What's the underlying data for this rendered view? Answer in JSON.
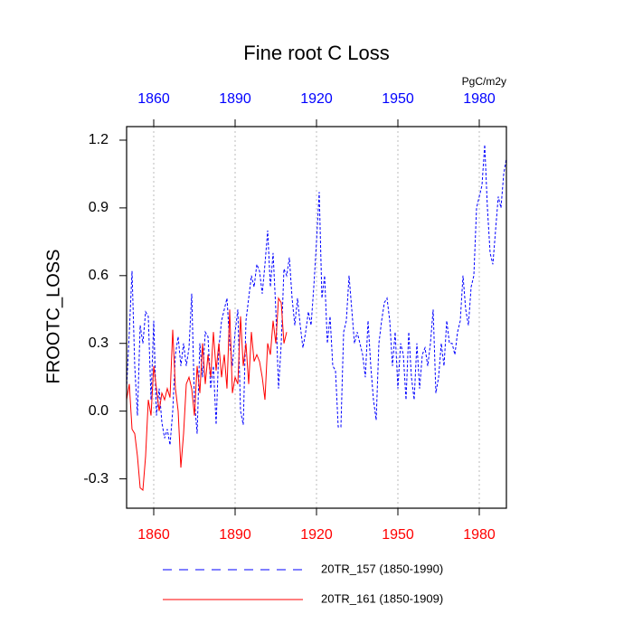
{
  "chart_data": {
    "type": "line",
    "title": "Fine root C Loss",
    "ylabel": "FROOTC_LOSS",
    "units": "PgC/m2y",
    "xlim": [
      1850,
      1990
    ],
    "xticks": [
      1860,
      1890,
      1920,
      1950,
      1980
    ],
    "ylim": [
      -0.43,
      1.26
    ],
    "yticks": [
      -0.3,
      {
        "value": 0,
        "label": "0.0"
      },
      0.3,
      0.6,
      0.9,
      1.2
    ],
    "grid": true,
    "top_tick_color": "#0000ff",
    "bottom_tick_color": "#ff0000",
    "series": [
      {
        "name": "20TR_157 (1850-1990)",
        "color": "#0000ff",
        "style": "dashed",
        "x": [
          1850,
          1851,
          1852,
          1853,
          1854,
          1855,
          1856,
          1857,
          1858,
          1859,
          1860,
          1861,
          1862,
          1863,
          1864,
          1865,
          1866,
          1867,
          1868,
          1869,
          1870,
          1871,
          1872,
          1873,
          1874,
          1875,
          1876,
          1877,
          1878,
          1879,
          1880,
          1881,
          1882,
          1883,
          1884,
          1885,
          1886,
          1887,
          1888,
          1889,
          1890,
          1891,
          1892,
          1893,
          1894,
          1895,
          1896,
          1897,
          1898,
          1899,
          1900,
          1901,
          1902,
          1903,
          1904,
          1905,
          1906,
          1907,
          1908,
          1909,
          1910,
          1911,
          1912,
          1913,
          1914,
          1915,
          1916,
          1917,
          1918,
          1919,
          1920,
          1921,
          1922,
          1923,
          1924,
          1925,
          1926,
          1927,
          1928,
          1929,
          1930,
          1931,
          1932,
          1933,
          1934,
          1935,
          1936,
          1937,
          1938,
          1939,
          1940,
          1941,
          1942,
          1943,
          1944,
          1945,
          1946,
          1947,
          1948,
          1949,
          1950,
          1951,
          1952,
          1953,
          1954,
          1955,
          1956,
          1957,
          1958,
          1959,
          1960,
          1961,
          1962,
          1963,
          1964,
          1965,
          1966,
          1967,
          1968,
          1969,
          1970,
          1971,
          1972,
          1973,
          1974,
          1975,
          1976,
          1977,
          1978,
          1979,
          1980,
          1981,
          1982,
          1983,
          1984,
          1985,
          1986,
          1987,
          1988,
          1989,
          1990
        ],
        "values": [
          0.1,
          0.35,
          0.62,
          0.2,
          -0.02,
          0.38,
          0.3,
          0.44,
          0.42,
          0.05,
          0.4,
          -0.02,
          0.1,
          -0.05,
          -0.12,
          -0.08,
          -0.15,
          0.0,
          0.25,
          0.33,
          0.2,
          0.3,
          0.2,
          0.28,
          0.52,
          0.05,
          -0.1,
          0.3,
          0.15,
          0.35,
          0.33,
          0.1,
          0.2,
          -0.06,
          0.28,
          0.4,
          0.45,
          0.5,
          0.3,
          0.2,
          0.35,
          0.45,
          0.0,
          -0.06,
          0.4,
          0.5,
          0.6,
          0.55,
          0.65,
          0.62,
          0.52,
          0.65,
          0.8,
          0.55,
          0.7,
          0.45,
          0.1,
          0.3,
          0.63,
          0.6,
          0.68,
          0.5,
          0.38,
          0.5,
          0.38,
          0.28,
          0.35,
          0.44,
          0.38,
          0.55,
          0.75,
          0.97,
          0.5,
          0.6,
          0.3,
          0.42,
          0.2,
          0.18,
          -0.07,
          -0.07,
          0.35,
          0.4,
          0.6,
          0.45,
          0.3,
          0.35,
          0.3,
          0.25,
          0.15,
          0.4,
          0.2,
          0.05,
          -0.04,
          0.3,
          0.4,
          0.48,
          0.5,
          0.4,
          0.2,
          0.35,
          0.1,
          0.3,
          0.25,
          0.05,
          0.35,
          0.15,
          0.05,
          0.3,
          0.1,
          0.25,
          0.28,
          0.2,
          0.3,
          0.45,
          0.08,
          0.15,
          0.3,
          0.2,
          0.4,
          0.3,
          0.3,
          0.25,
          0.35,
          0.4,
          0.6,
          0.45,
          0.38,
          0.55,
          0.6,
          0.9,
          0.95,
          1.0,
          1.18,
          0.9,
          0.7,
          0.65,
          0.8,
          0.95,
          0.9,
          1.05,
          1.12
        ]
      },
      {
        "name": "20TR_161 (1850-1909)",
        "color": "#ff0000",
        "style": "solid",
        "x": [
          1850,
          1851,
          1852,
          1853,
          1854,
          1855,
          1856,
          1857,
          1858,
          1859,
          1860,
          1861,
          1862,
          1863,
          1864,
          1865,
          1866,
          1867,
          1868,
          1869,
          1870,
          1871,
          1872,
          1873,
          1874,
          1875,
          1876,
          1877,
          1878,
          1879,
          1880,
          1881,
          1882,
          1883,
          1884,
          1885,
          1886,
          1887,
          1888,
          1889,
          1890,
          1891,
          1892,
          1893,
          1894,
          1895,
          1896,
          1897,
          1898,
          1899,
          1900,
          1901,
          1902,
          1903,
          1904,
          1905,
          1906,
          1907,
          1908,
          1909
        ],
        "values": [
          0.05,
          0.12,
          -0.08,
          -0.1,
          -0.2,
          -0.34,
          -0.35,
          -0.2,
          0.05,
          -0.02,
          0.2,
          0.1,
          0.0,
          0.08,
          0.05,
          0.1,
          0.06,
          0.36,
          0.1,
          0.0,
          -0.25,
          -0.1,
          0.12,
          0.15,
          0.1,
          -0.02,
          0.2,
          0.08,
          0.3,
          0.12,
          0.25,
          0.15,
          0.35,
          0.18,
          0.3,
          0.15,
          0.25,
          0.1,
          0.45,
          0.08,
          0.15,
          0.12,
          0.42,
          0.2,
          0.3,
          0.12,
          0.35,
          0.22,
          0.25,
          0.22,
          0.15,
          0.05,
          0.3,
          0.25,
          0.4,
          0.3,
          0.5,
          0.48,
          0.3,
          0.35
        ]
      }
    ]
  }
}
